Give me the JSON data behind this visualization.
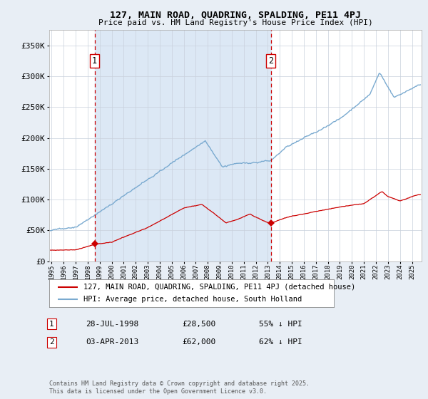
{
  "title1": "127, MAIN ROAD, QUADRING, SPALDING, PE11 4PJ",
  "title2": "Price paid vs. HM Land Registry's House Price Index (HPI)",
  "legend_red": "127, MAIN ROAD, QUADRING, SPALDING, PE11 4PJ (detached house)",
  "legend_blue": "HPI: Average price, detached house, South Holland",
  "annotation1_date": "28-JUL-1998",
  "annotation1_price": "£28,500",
  "annotation1_pct": "55% ↓ HPI",
  "annotation2_date": "03-APR-2013",
  "annotation2_price": "£62,000",
  "annotation2_pct": "62% ↓ HPI",
  "footer": "Contains HM Land Registry data © Crown copyright and database right 2025.\nThis data is licensed under the Open Government Licence v3.0.",
  "bg_color": "#e8eef5",
  "plot_bg": "#ffffff",
  "red_color": "#cc0000",
  "blue_color": "#7aaad0",
  "vline_color": "#cc0000",
  "shade_color": "#dce8f5",
  "sale1_year": 1998.575,
  "sale2_year": 2013.25,
  "sale1_value": 28500,
  "sale2_value": 62000,
  "ylim_max": 375000,
  "xmin": 1994.8,
  "xmax": 2025.8,
  "yticks": [
    0,
    50000,
    100000,
    150000,
    200000,
    250000,
    300000,
    350000
  ],
  "ylabels": [
    "£0",
    "£50K",
    "£100K",
    "£150K",
    "£200K",
    "£250K",
    "£300K",
    "£350K"
  ]
}
